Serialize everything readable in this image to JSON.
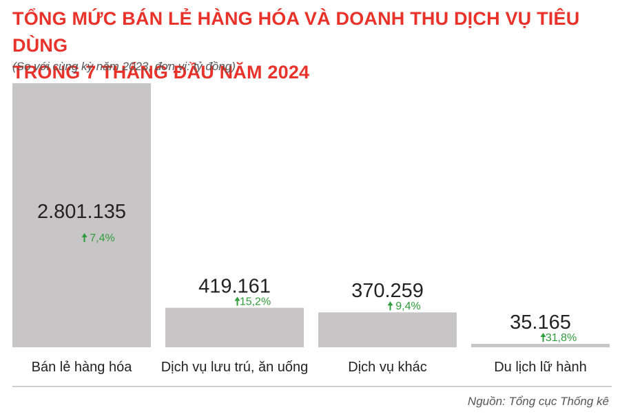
{
  "header": {
    "title_line1": "TỔNG MỨC BÁN LẺ HÀNG HÓA VÀ DOANH THU DỊCH VỤ TIÊU DÙNG",
    "title_line2": "TRONG 7 THÁNG ĐẦU NĂM 2024",
    "subtitle": "(So với cùng kỳ năm 2023, đơn vị: tỷ đồng)"
  },
  "source": "Nguồn: Tổng cục Thống kê",
  "colors": {
    "title": "#e8322a",
    "bar": "#c8c5c6",
    "growth": "#2e9c3a",
    "value_text": "#222222",
    "label_text": "#222222"
  },
  "chart_data": {
    "type": "bar",
    "categories": [
      "Bán lẻ hàng hóa",
      "Dịch vụ lưu trú, ăn uống",
      "Dịch vụ khác",
      "Du lịch lữ hành"
    ],
    "values": [
      2801135,
      419161,
      370259,
      35165
    ],
    "value_labels": [
      "2.801.135",
      "419.161",
      "370.259",
      "35.165"
    ],
    "growth_labels": [
      "7,4%",
      "15,2%",
      "9,4%",
      "31,8%"
    ],
    "growth_direction": [
      "up",
      "up",
      "up",
      "up"
    ],
    "unit": "tỷ đồng",
    "ylim": [
      0,
      2801135
    ],
    "grid": false,
    "legend": "none"
  }
}
